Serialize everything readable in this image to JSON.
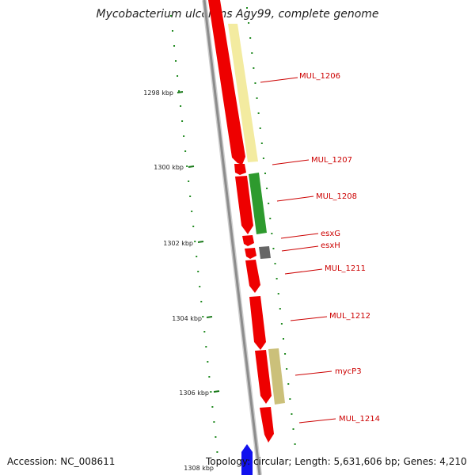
{
  "title": "Mycobacterium ulcerans Agy99, complete genome",
  "ticks": [
    {
      "label": "1298 kbp"
    },
    {
      "label": "1300 kbp"
    },
    {
      "label": "1302 kbp"
    },
    {
      "label": "1304 kbp"
    },
    {
      "label": "1306 kbp"
    },
    {
      "label": "1308 kbp"
    }
  ],
  "genes": [
    {
      "label": "MUL_1206"
    },
    {
      "label": "MUL_1207"
    },
    {
      "label": "MUL_1208"
    },
    {
      "label": "esxG"
    },
    {
      "label": "esxH"
    },
    {
      "label": "MUL_1211"
    },
    {
      "label": "MUL_1212"
    },
    {
      "label": "mycP3"
    },
    {
      "label": "MUL_1214"
    }
  ],
  "footer": {
    "accession": "Accession: NC_008611",
    "topology": "Topology: circular; Length: 5,631,606 bp; Genes: 4,210"
  },
  "colors": {
    "cds": "#ee0000",
    "backbone": "#999999",
    "tick": "#228b22",
    "label": "#cc0000"
  }
}
